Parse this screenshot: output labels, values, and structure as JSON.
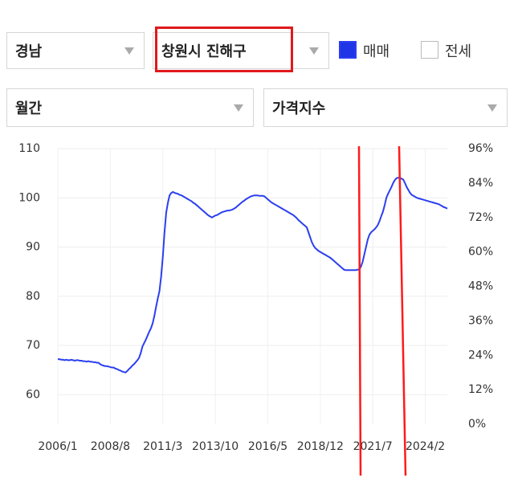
{
  "controls": {
    "region": "경남",
    "district": "창원시 진해구",
    "period": "월간",
    "metric": "가격지수",
    "options": [
      "매매",
      "전세"
    ]
  },
  "chart_data": {
    "type": "line",
    "categories": [
      "2006/1",
      null,
      null,
      null,
      null,
      null,
      null,
      null,
      null,
      null,
      null,
      null,
      null,
      null,
      null,
      null,
      null,
      null,
      null,
      null,
      null,
      null,
      null,
      null,
      null,
      null,
      null,
      null,
      null,
      null,
      null,
      "2008/8",
      null,
      null,
      null,
      null,
      null,
      null,
      null,
      null,
      null,
      null,
      null,
      null,
      null,
      null,
      null,
      null,
      null,
      null,
      null,
      null,
      null,
      null,
      null,
      null,
      null,
      null,
      null,
      null,
      null,
      null,
      "2011/3",
      null,
      null,
      null,
      null,
      null,
      null,
      null,
      null,
      null,
      null,
      null,
      null,
      null,
      null,
      null,
      null,
      null,
      null,
      null,
      null,
      null,
      null,
      null,
      null,
      null,
      null,
      null,
      null,
      null,
      null,
      "2013/10",
      null,
      null,
      null,
      null,
      null,
      null,
      null,
      null,
      null,
      null,
      null,
      null,
      null,
      null,
      null,
      null,
      null,
      null,
      null,
      null,
      null,
      null,
      null,
      null,
      null,
      null,
      null,
      null,
      null,
      null,
      "2016/5",
      null,
      null,
      null,
      null,
      null,
      null,
      null,
      null,
      null,
      null,
      null,
      null,
      null,
      null,
      null,
      null,
      null,
      null,
      null,
      null,
      null,
      null,
      null,
      null,
      null,
      null,
      null,
      null,
      null,
      null,
      "2018/12",
      null,
      null,
      null,
      null,
      null,
      null,
      null,
      null,
      null,
      null,
      null,
      null,
      null,
      null,
      null,
      null,
      null,
      null,
      null,
      null,
      null,
      null,
      null,
      null,
      null,
      null,
      null,
      null,
      null,
      null,
      "2021/7",
      null,
      null,
      null,
      null,
      null,
      null,
      null,
      null,
      null,
      null,
      null,
      null,
      null,
      null,
      null,
      null,
      null,
      null,
      null,
      null,
      null,
      null,
      null,
      null,
      null,
      null,
      null,
      null,
      null,
      null,
      "2024/2",
      null,
      null,
      null,
      null,
      null,
      null,
      null,
      null,
      null,
      null,
      null,
      null,
      null
    ],
    "series": [
      {
        "color": "#2b3ff0",
        "values": [
          67.2,
          67.2,
          67.1,
          67.1,
          67.0,
          67.1,
          67.0,
          67.0,
          67.1,
          67.0,
          66.9,
          67.0,
          67.0,
          66.9,
          66.9,
          66.8,
          66.8,
          66.7,
          66.8,
          66.7,
          66.7,
          66.6,
          66.6,
          66.5,
          66.5,
          66.2,
          66.0,
          65.9,
          65.8,
          65.8,
          65.7,
          65.6,
          65.5,
          65.5,
          65.3,
          65.2,
          65.0,
          64.9,
          64.7,
          64.6,
          64.5,
          64.8,
          65.2,
          65.5,
          65.9,
          66.2,
          66.6,
          67.0,
          67.5,
          68.5,
          69.8,
          70.5,
          71.2,
          72.0,
          72.8,
          73.5,
          74.5,
          76.0,
          77.8,
          79.5,
          81.0,
          84.0,
          88.0,
          93.0,
          97.0,
          99.0,
          100.5,
          101.0,
          101.2,
          101.0,
          100.9,
          100.8,
          100.6,
          100.5,
          100.3,
          100.1,
          99.9,
          99.7,
          99.5,
          99.3,
          99.0,
          98.8,
          98.5,
          98.2,
          97.9,
          97.6,
          97.3,
          97.0,
          96.7,
          96.4,
          96.2,
          96.0,
          96.2,
          96.4,
          96.5,
          96.7,
          96.9,
          97.1,
          97.2,
          97.3,
          97.4,
          97.4,
          97.5,
          97.6,
          97.8,
          98.0,
          98.3,
          98.6,
          98.9,
          99.2,
          99.4,
          99.7,
          99.9,
          100.1,
          100.3,
          100.4,
          100.5,
          100.5,
          100.5,
          100.4,
          100.4,
          100.4,
          100.3,
          100.0,
          99.7,
          99.4,
          99.1,
          98.9,
          98.7,
          98.5,
          98.3,
          98.1,
          97.9,
          97.7,
          97.5,
          97.3,
          97.1,
          96.9,
          96.7,
          96.5,
          96.2,
          95.9,
          95.5,
          95.2,
          94.9,
          94.6,
          94.3,
          94.0,
          93.0,
          92.0,
          91.0,
          90.3,
          89.8,
          89.5,
          89.2,
          89.0,
          88.8,
          88.6,
          88.4,
          88.2,
          88.0,
          87.8,
          87.5,
          87.2,
          86.9,
          86.6,
          86.3,
          86.0,
          85.7,
          85.4,
          85.3,
          85.3,
          85.3,
          85.3,
          85.3,
          85.3,
          85.3,
          85.4,
          85.4,
          86.0,
          87.0,
          88.5,
          90.0,
          91.5,
          92.5,
          93.0,
          93.3,
          93.6,
          94.0,
          94.5,
          95.3,
          96.3,
          97.2,
          98.5,
          100.0,
          100.8,
          101.5,
          102.2,
          103.0,
          103.6,
          104.0,
          104.1,
          104.0,
          103.9,
          103.7,
          103.0,
          102.2,
          101.6,
          101.0,
          100.6,
          100.4,
          100.2,
          100.0,
          99.9,
          99.8,
          99.7,
          99.6,
          99.5,
          99.4,
          99.3,
          99.2,
          99.1,
          99.0,
          98.9,
          98.8,
          98.7,
          98.5,
          98.3,
          98.1,
          98.0,
          97.8
        ]
      }
    ],
    "ylim": [
      54,
      110
    ],
    "yticks": [
      60,
      70,
      80,
      90,
      100,
      110
    ],
    "y2lim": [
      0,
      96
    ],
    "y2ticks": [
      {
        "value": 0,
        "label": "0%"
      },
      {
        "value": 12,
        "label": "12%"
      },
      {
        "value": 24,
        "label": "24%"
      },
      {
        "value": 36,
        "label": "36%"
      },
      {
        "value": 48,
        "label": "48%"
      },
      {
        "value": 60,
        "label": "60%"
      },
      {
        "value": 72,
        "label": "72%"
      },
      {
        "value": 84,
        "label": "84%"
      },
      {
        "value": 96,
        "label": "96%"
      }
    ],
    "grid": true
  }
}
